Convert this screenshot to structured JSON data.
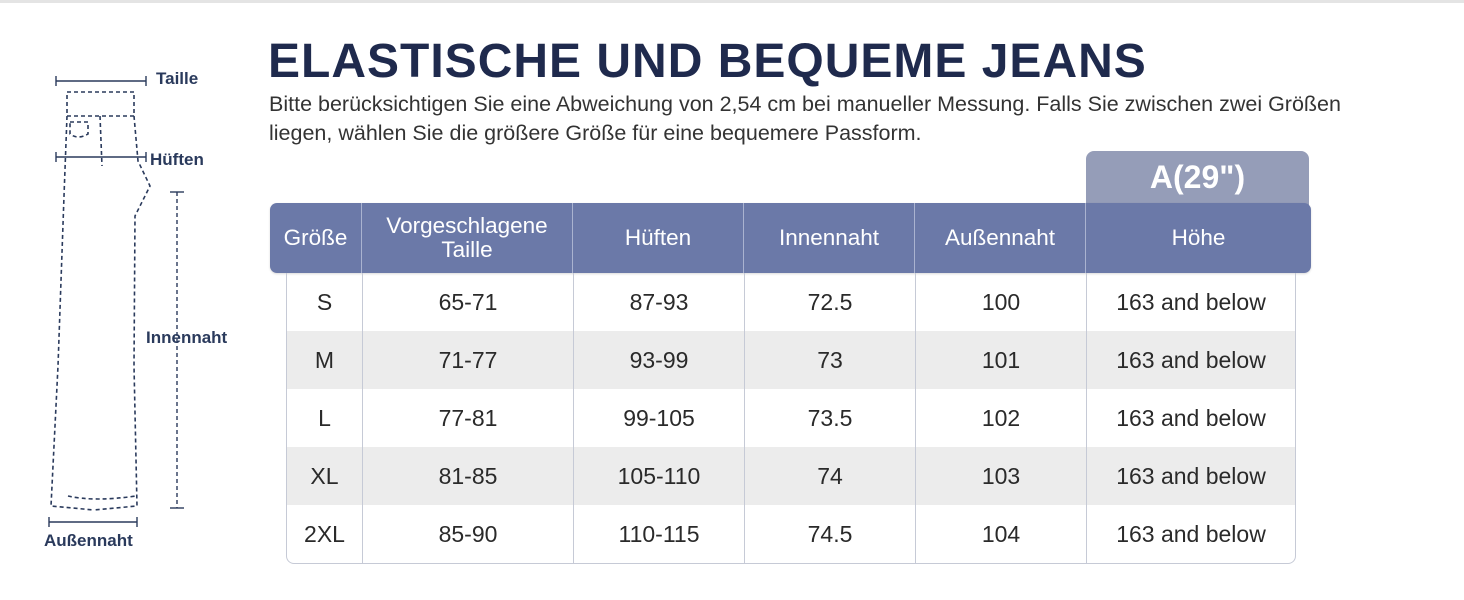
{
  "diagram": {
    "labels": {
      "waist": "Taille",
      "hips": "Hüften",
      "inseam": "Innennaht",
      "outseam": "Außennaht"
    }
  },
  "header": {
    "title": "ELASTISCHE UND BEQUEME JEANS",
    "subtitle": "Bitte berücksichtigen Sie eine Abweichung von 2,54 cm bei manueller Messung. Falls Sie zwischen zwei Größen liegen, wählen Sie die größere Größe für eine bequemere Passform."
  },
  "variant": {
    "label": "A(29\")"
  },
  "table": {
    "headers": [
      "Größe",
      "Vorgeschlagene Taille",
      "Hüften",
      "Innennaht",
      "Außennaht",
      "Höhe"
    ],
    "rows": [
      [
        "S",
        "65-71",
        "87-93",
        "72.5",
        "100",
        "163 and below"
      ],
      [
        "M",
        "71-77",
        "93-99",
        "73",
        "101",
        "163 and below"
      ],
      [
        "L",
        "77-81",
        "99-105",
        "73.5",
        "102",
        "163 and below"
      ],
      [
        "XL",
        "81-85",
        "105-110",
        "74",
        "103",
        "163 and below"
      ],
      [
        "2XL",
        "85-90",
        "110-115",
        "74.5",
        "104",
        "163 and below"
      ]
    ]
  },
  "colors": {
    "title": "#1f2a4d",
    "header_bg": "#6b79a8",
    "variant_bg": "#959db8",
    "alt_row": "#ececec"
  }
}
